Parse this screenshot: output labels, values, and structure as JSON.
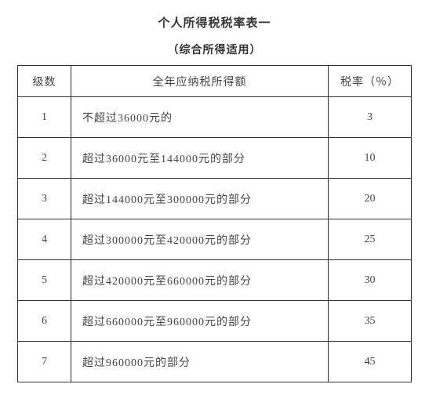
{
  "title_line1": "个人所得税税率表一",
  "title_line2": "（综合所得适用）",
  "table": {
    "headers": {
      "level": "级数",
      "description": "全年应纳税所得额",
      "rate": "税率（％）"
    },
    "rows": [
      {
        "level": "1",
        "description": "不超过36000元的",
        "rate": "3"
      },
      {
        "level": "2",
        "description": "超过36000元至144000元的部分",
        "rate": "10"
      },
      {
        "level": "3",
        "description": "超过144000元至300000元的部分",
        "rate": "20"
      },
      {
        "level": "4",
        "description": "超过300000元至420000元的部分",
        "rate": "25"
      },
      {
        "level": "5",
        "description": "超过420000元至660000元的部分",
        "rate": "30"
      },
      {
        "level": "6",
        "description": "超过660000元至960000元的部分",
        "rate": "35"
      },
      {
        "level": "7",
        "description": "超过960000元的部分",
        "rate": "45"
      }
    ]
  }
}
